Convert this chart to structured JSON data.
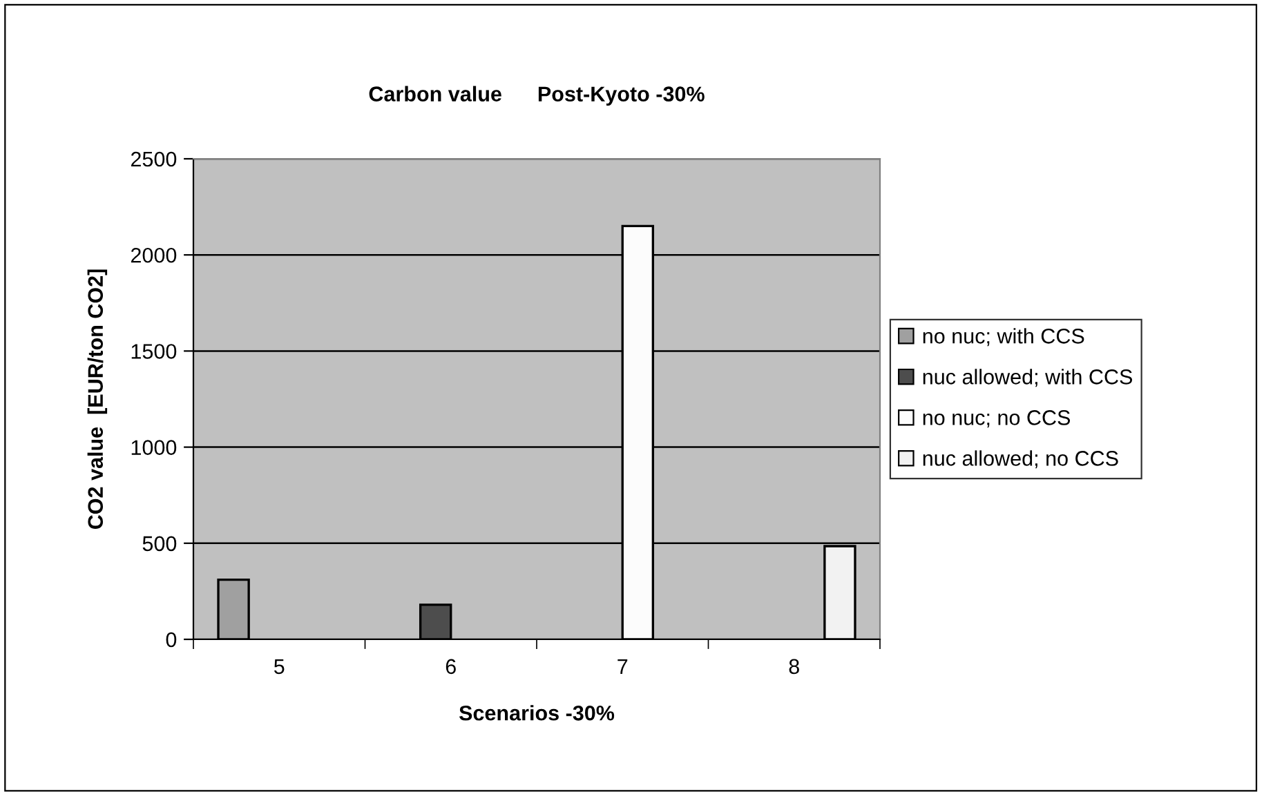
{
  "chart_data": {
    "type": "bar",
    "title": "Carbon value      Post-Kyoto -30%",
    "xlabel": "Scenarios -30%",
    "ylabel": "CO2 value  [EUR/ton CO2]",
    "categories": [
      "5",
      "6",
      "7",
      "8"
    ],
    "series": [
      {
        "name": "no nuc; with CCS",
        "color": "#a0a0a0",
        "values": [
          310,
          null,
          null,
          null
        ]
      },
      {
        "name": "nuc allowed; with CCS",
        "color": "#4d4d4d",
        "values": [
          null,
          180,
          null,
          null
        ]
      },
      {
        "name": "no nuc; no CCS",
        "color": "#fcfcfc",
        "values": [
          null,
          null,
          2150,
          null
        ]
      },
      {
        "name": "nuc allowed; no CCS",
        "color": "#f2f2f2",
        "values": [
          null,
          null,
          null,
          485
        ]
      }
    ],
    "ylim": [
      0,
      2500
    ],
    "yticks": [
      0,
      500,
      1000,
      1500,
      2000,
      2500
    ],
    "grid": "y",
    "legend": "right"
  }
}
